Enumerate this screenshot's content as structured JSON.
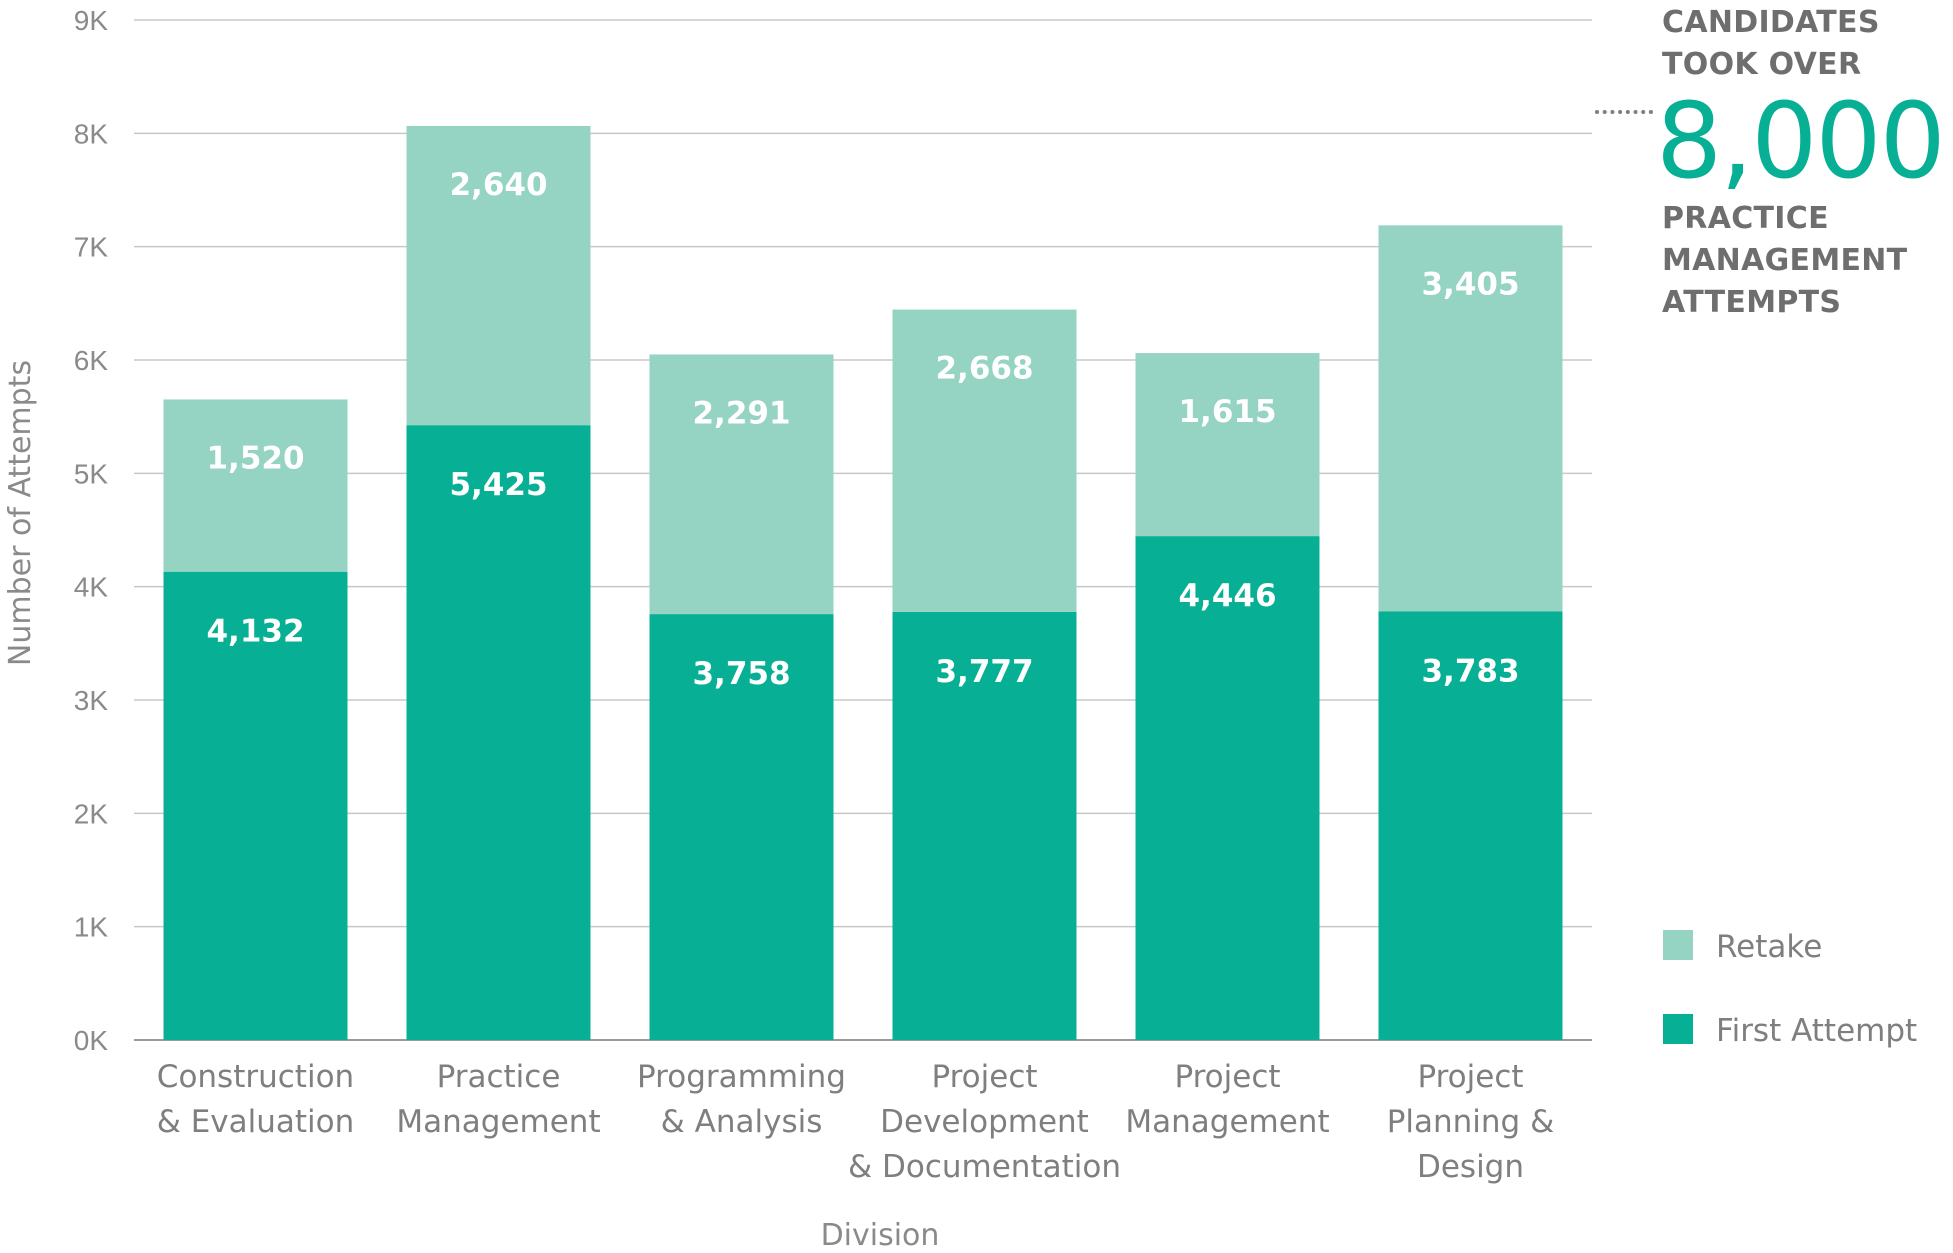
{
  "chart_data": {
    "type": "bar",
    "stacked": true,
    "categories": [
      [
        "Construction",
        "& Evaluation"
      ],
      [
        "Practice",
        "Management"
      ],
      [
        "Programming",
        "& Analysis"
      ],
      [
        "Project",
        "Development",
        "& Documentation"
      ],
      [
        "Project",
        "Management"
      ],
      [
        "Project",
        "Planning &",
        "Design"
      ]
    ],
    "series": [
      {
        "name": "First Attempt",
        "color": "#07b094",
        "values": [
          4132,
          5425,
          3758,
          3777,
          4446,
          3783
        ],
        "labels": [
          "4,132",
          "5,425",
          "3,758",
          "3,777",
          "4,446",
          "3,783"
        ]
      },
      {
        "name": "Retake",
        "color": "#95d3c3",
        "values": [
          1520,
          2640,
          2291,
          2668,
          1615,
          3405
        ],
        "labels": [
          "1,520",
          "2,640",
          "2,291",
          "2,668",
          "1,615",
          "3,405"
        ]
      }
    ],
    "xlabel": "Division",
    "ylabel": "Number of Attempts",
    "ylim": [
      0,
      9000
    ],
    "yticks": [
      0,
      1000,
      2000,
      3000,
      4000,
      5000,
      6000,
      7000,
      8000,
      9000
    ],
    "ytick_labels": [
      "0K",
      "1K",
      "2K",
      "3K",
      "4K",
      "5K",
      "6K",
      "7K",
      "8K",
      "9K"
    ],
    "grid": true,
    "legend": {
      "position": "bottom-right",
      "order": [
        "Retake",
        "First Attempt"
      ]
    }
  },
  "callout": {
    "line1": "CANDIDATES",
    "line2": "TOOK OVER",
    "number": "8,000",
    "line3": "PRACTICE",
    "line4": "MANAGEMENT",
    "line5": "ATTEMPTS",
    "number_color": "#07b094",
    "reference_value": 8000
  }
}
